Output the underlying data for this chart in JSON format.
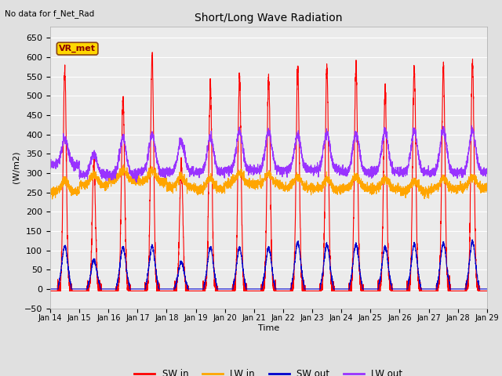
{
  "title": "Short/Long Wave Radiation",
  "xlabel": "Time",
  "ylabel": "(W/m2)",
  "no_data_text": "No data for f_Net_Rad",
  "legend_label_text": "VR_met",
  "ylim": [
    -50,
    680
  ],
  "n_days": 15,
  "start_day": 14,
  "colors": {
    "SW_in": "#FF0000",
    "LW_in": "#FFA500",
    "SW_out": "#0000CC",
    "LW_out": "#9933FF"
  },
  "bg_color": "#E0E0E0",
  "plot_bg": "#EBEBEB",
  "linewidth": 0.8
}
